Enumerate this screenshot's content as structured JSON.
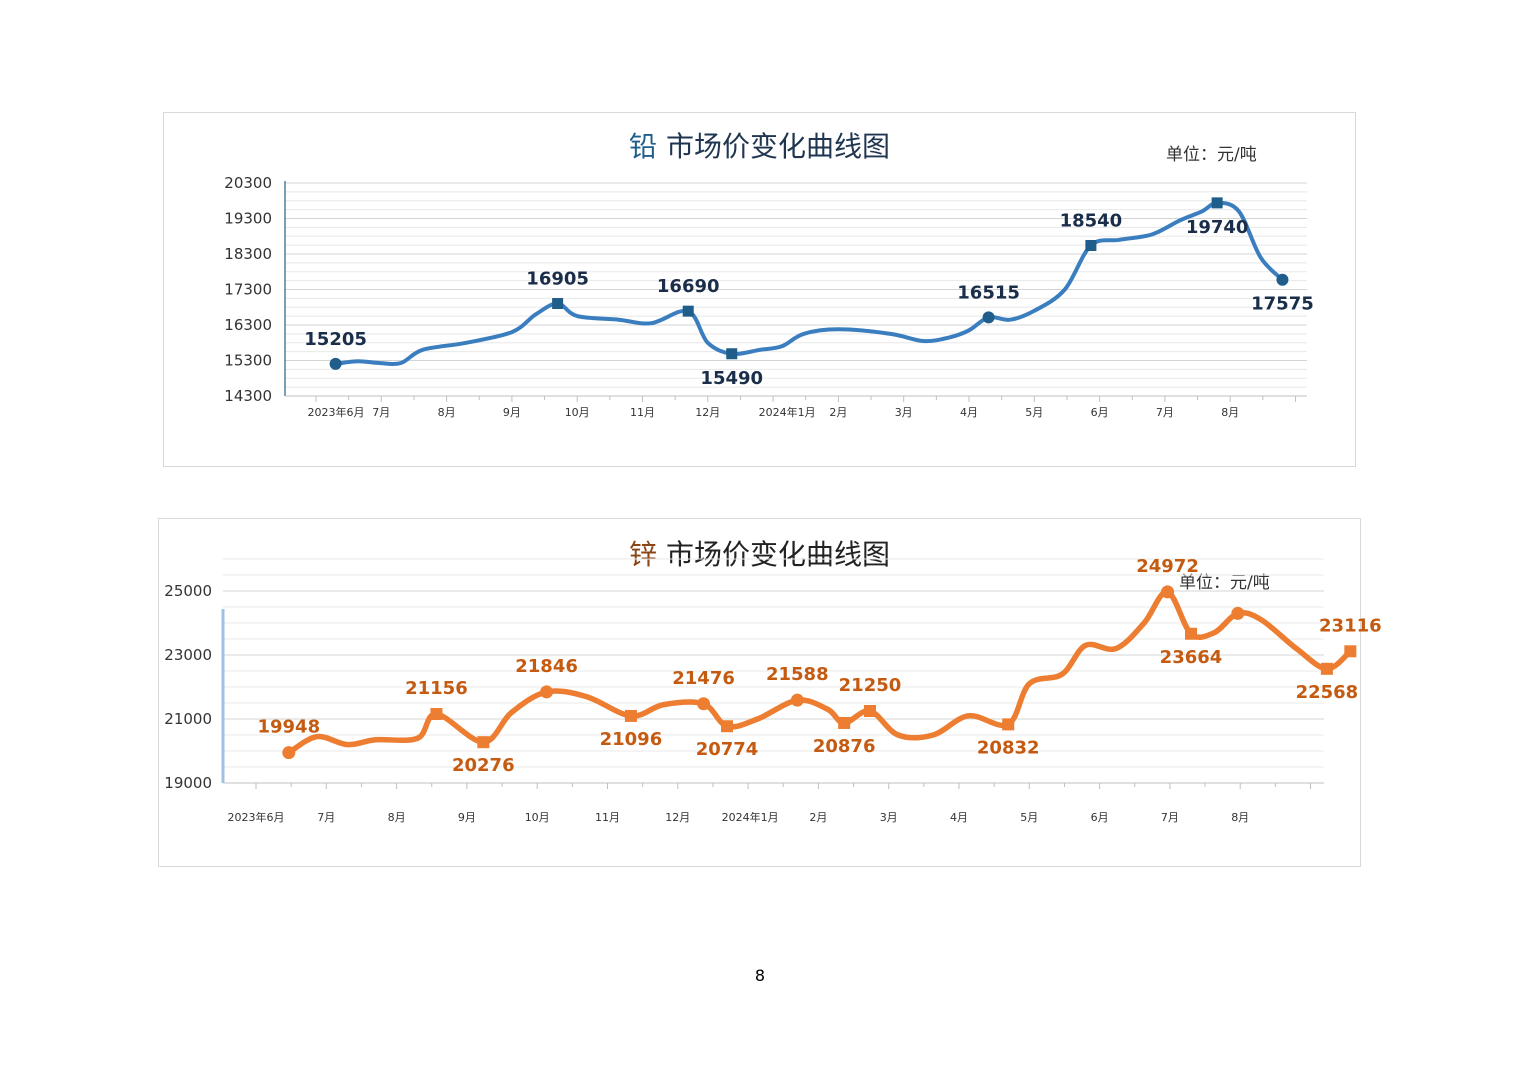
{
  "page_number": "8",
  "chart_data": [
    {
      "type": "line",
      "title_metal": "铅",
      "title_rest": "市场价变化曲线图",
      "unit": "单位：元/吨",
      "ylim": [
        14300,
        20300
      ],
      "y_ticks": [
        "14300",
        "15300",
        "16300",
        "17300",
        "18300",
        "19300",
        "20300"
      ],
      "grid": true,
      "accent_color": "#3a7ebf",
      "marker_color": "#1f5e8a",
      "title_color": "#1f5e8a",
      "label_color": "#1a2e4a",
      "x_tick_labels": [
        {
          "label": "2023年6月",
          "x": "2023-06"
        },
        {
          "label": "7月",
          "x": "2023-07"
        },
        {
          "label": "8月",
          "x": "2023-08"
        },
        {
          "label": "9月",
          "x": "2023-09"
        },
        {
          "label": "10月",
          "x": "2023-10"
        },
        {
          "label": "11月",
          "x": "2023-11"
        },
        {
          "label": "12月",
          "x": "2023-12"
        },
        {
          "label": "2024年1月",
          "x": "2024-01"
        },
        {
          "label": "2月",
          "x": "2024-02"
        },
        {
          "label": "3月",
          "x": "2024-03"
        },
        {
          "label": "4月",
          "x": "2024-04"
        },
        {
          "label": "5月",
          "x": "2024-05"
        },
        {
          "label": "6月",
          "x": "2024-06"
        },
        {
          "label": "7月",
          "x": "2024-07"
        },
        {
          "label": "8月",
          "x": "2024-08"
        }
      ],
      "series": [
        {
          "points": [
            {
              "x": "2023-06-10",
              "y": 15205,
              "label": "15205",
              "marker": "circle",
              "label_pos": "above"
            },
            {
              "x": "2023-06-20",
              "y": 15280
            },
            {
              "x": "2023-06-30",
              "y": 15230
            },
            {
              "x": "2023-07-10",
              "y": 15230
            },
            {
              "x": "2023-07-20",
              "y": 15600
            },
            {
              "x": "2023-08-10",
              "y": 15800
            },
            {
              "x": "2023-09-01",
              "y": 16100
            },
            {
              "x": "2023-09-12",
              "y": 16600
            },
            {
              "x": "2023-09-22",
              "y": 16905,
              "label": "16905",
              "marker": "square",
              "label_pos": "above"
            },
            {
              "x": "2023-10-01",
              "y": 16550
            },
            {
              "x": "2023-10-20",
              "y": 16450
            },
            {
              "x": "2023-11-05",
              "y": 16350
            },
            {
              "x": "2023-11-22",
              "y": 16690,
              "label": "16690",
              "marker": "square",
              "label_pos": "above"
            },
            {
              "x": "2023-12-01",
              "y": 15800
            },
            {
              "x": "2023-12-12",
              "y": 15490,
              "label": "15490",
              "marker": "square",
              "label_pos": "below"
            },
            {
              "x": "2023-12-25",
              "y": 15600
            },
            {
              "x": "2024-01-05",
              "y": 15700
            },
            {
              "x": "2024-01-15",
              "y": 16050
            },
            {
              "x": "2024-02-01",
              "y": 16180
            },
            {
              "x": "2024-02-25",
              "y": 16050
            },
            {
              "x": "2024-03-10",
              "y": 15850
            },
            {
              "x": "2024-03-22",
              "y": 15950
            },
            {
              "x": "2024-04-01",
              "y": 16150
            },
            {
              "x": "2024-04-10",
              "y": 16515,
              "label": "16515",
              "marker": "circle",
              "label_pos": "above"
            },
            {
              "x": "2024-04-20",
              "y": 16450
            },
            {
              "x": "2024-05-01",
              "y": 16700
            },
            {
              "x": "2024-05-15",
              "y": 17300
            },
            {
              "x": "2024-05-27",
              "y": 18540,
              "label": "18540",
              "marker": "square",
              "label_pos": "above"
            },
            {
              "x": "2024-06-10",
              "y": 18700
            },
            {
              "x": "2024-06-25",
              "y": 18850
            },
            {
              "x": "2024-07-08",
              "y": 19250
            },
            {
              "x": "2024-07-18",
              "y": 19500
            },
            {
              "x": "2024-07-25",
              "y": 19740,
              "label": "19740",
              "marker": "square",
              "label_pos": "below"
            },
            {
              "x": "2024-08-05",
              "y": 19500
            },
            {
              "x": "2024-08-15",
              "y": 18200
            },
            {
              "x": "2024-08-25",
              "y": 17575,
              "label": "17575",
              "marker": "circle",
              "label_pos": "below"
            }
          ]
        }
      ]
    },
    {
      "type": "line",
      "title_metal": "锌",
      "title_rest": "市场价变化曲线图",
      "unit": "单位：元/吨",
      "ylim": [
        19000,
        26000
      ],
      "y_ticks": [
        "19000",
        "21000",
        "23000",
        "25000"
      ],
      "grid": true,
      "accent_color": "#ec7d31",
      "marker_color": "#ec7d31",
      "title_color": "#8b4513",
      "label_color": "#c55a11",
      "x_tick_labels": [
        {
          "label": "2023年6月",
          "x": "2023-06"
        },
        {
          "label": "7月",
          "x": "2023-07"
        },
        {
          "label": "8月",
          "x": "2023-08"
        },
        {
          "label": "9月",
          "x": "2023-09"
        },
        {
          "label": "10月",
          "x": "2023-10"
        },
        {
          "label": "11月",
          "x": "2023-11"
        },
        {
          "label": "12月",
          "x": "2023-12"
        },
        {
          "label": "2024年1月",
          "x": "2024-01"
        },
        {
          "label": "2月",
          "x": "2024-02"
        },
        {
          "label": "3月",
          "x": "2024-03"
        },
        {
          "label": "4月",
          "x": "2024-04"
        },
        {
          "label": "5月",
          "x": "2024-05"
        },
        {
          "label": "6月",
          "x": "2024-06"
        },
        {
          "label": "7月",
          "x": "2024-07"
        },
        {
          "label": "8月",
          "x": "2024-08"
        }
      ],
      "series": [
        {
          "points": [
            {
              "x": "2023-06-15",
              "y": 19948,
              "label": "19948",
              "marker": "circle",
              "label_pos": "above"
            },
            {
              "x": "2023-06-27",
              "y": 20450
            },
            {
              "x": "2023-07-10",
              "y": 20200
            },
            {
              "x": "2023-07-22",
              "y": 20350
            },
            {
              "x": "2023-08-10",
              "y": 20400
            },
            {
              "x": "2023-08-18",
              "y": 21156,
              "label": "21156",
              "marker": "square",
              "label_pos": "above"
            },
            {
              "x": "2023-09-08",
              "y": 20276,
              "label": "20276",
              "marker": "square",
              "label_pos": "below"
            },
            {
              "x": "2023-09-20",
              "y": 21200
            },
            {
              "x": "2023-10-05",
              "y": 21846,
              "label": "21846",
              "marker": "circle",
              "label_pos": "above"
            },
            {
              "x": "2023-10-22",
              "y": 21700
            },
            {
              "x": "2023-11-11",
              "y": 21096,
              "label": "21096",
              "marker": "square",
              "label_pos": "below"
            },
            {
              "x": "2023-11-25",
              "y": 21450
            },
            {
              "x": "2023-12-12",
              "y": 21476,
              "label": "21476",
              "marker": "circle",
              "label_pos": "above"
            },
            {
              "x": "2023-12-22",
              "y": 20774,
              "label": "20774",
              "marker": "square",
              "label_pos": "below"
            },
            {
              "x": "2024-01-05",
              "y": 21000
            },
            {
              "x": "2024-01-22",
              "y": 21588,
              "label": "21588",
              "marker": "circle",
              "label_pos": "above"
            },
            {
              "x": "2024-02-05",
              "y": 21300
            },
            {
              "x": "2024-02-12",
              "y": 20876,
              "label": "20876",
              "marker": "square",
              "label_pos": "below"
            },
            {
              "x": "2024-02-23",
              "y": 21250,
              "label": "21250",
              "marker": "square",
              "label_pos": "above"
            },
            {
              "x": "2024-03-05",
              "y": 20500
            },
            {
              "x": "2024-03-20",
              "y": 20500
            },
            {
              "x": "2024-04-05",
              "y": 21100
            },
            {
              "x": "2024-04-22",
              "y": 20832,
              "label": "20832",
              "marker": "square",
              "label_pos": "below"
            },
            {
              "x": "2024-05-01",
              "y": 22100
            },
            {
              "x": "2024-05-15",
              "y": 22400
            },
            {
              "x": "2024-05-25",
              "y": 23300
            },
            {
              "x": "2024-06-08",
              "y": 23200
            },
            {
              "x": "2024-06-20",
              "y": 24000
            },
            {
              "x": "2024-06-30",
              "y": 24972,
              "label": "24972",
              "marker": "circle",
              "label_pos": "above"
            },
            {
              "x": "2024-07-10",
              "y": 23664,
              "label": "23664",
              "marker": "square",
              "label_pos": "below"
            },
            {
              "x": "2024-07-20",
              "y": 23700
            },
            {
              "x": "2024-07-30",
              "y": 24300,
              "marker": "circle"
            },
            {
              "x": "2024-08-10",
              "y": 24100
            },
            {
              "x": "2024-08-25",
              "y": 23200
            },
            {
              "x": "2024-09-08",
              "y": 22568,
              "label": "22568",
              "marker": "square",
              "label_pos": "below"
            },
            {
              "x": "2024-09-18",
              "y": 23116,
              "label": "23116",
              "marker": "square",
              "label_pos": "above"
            }
          ]
        }
      ]
    }
  ]
}
